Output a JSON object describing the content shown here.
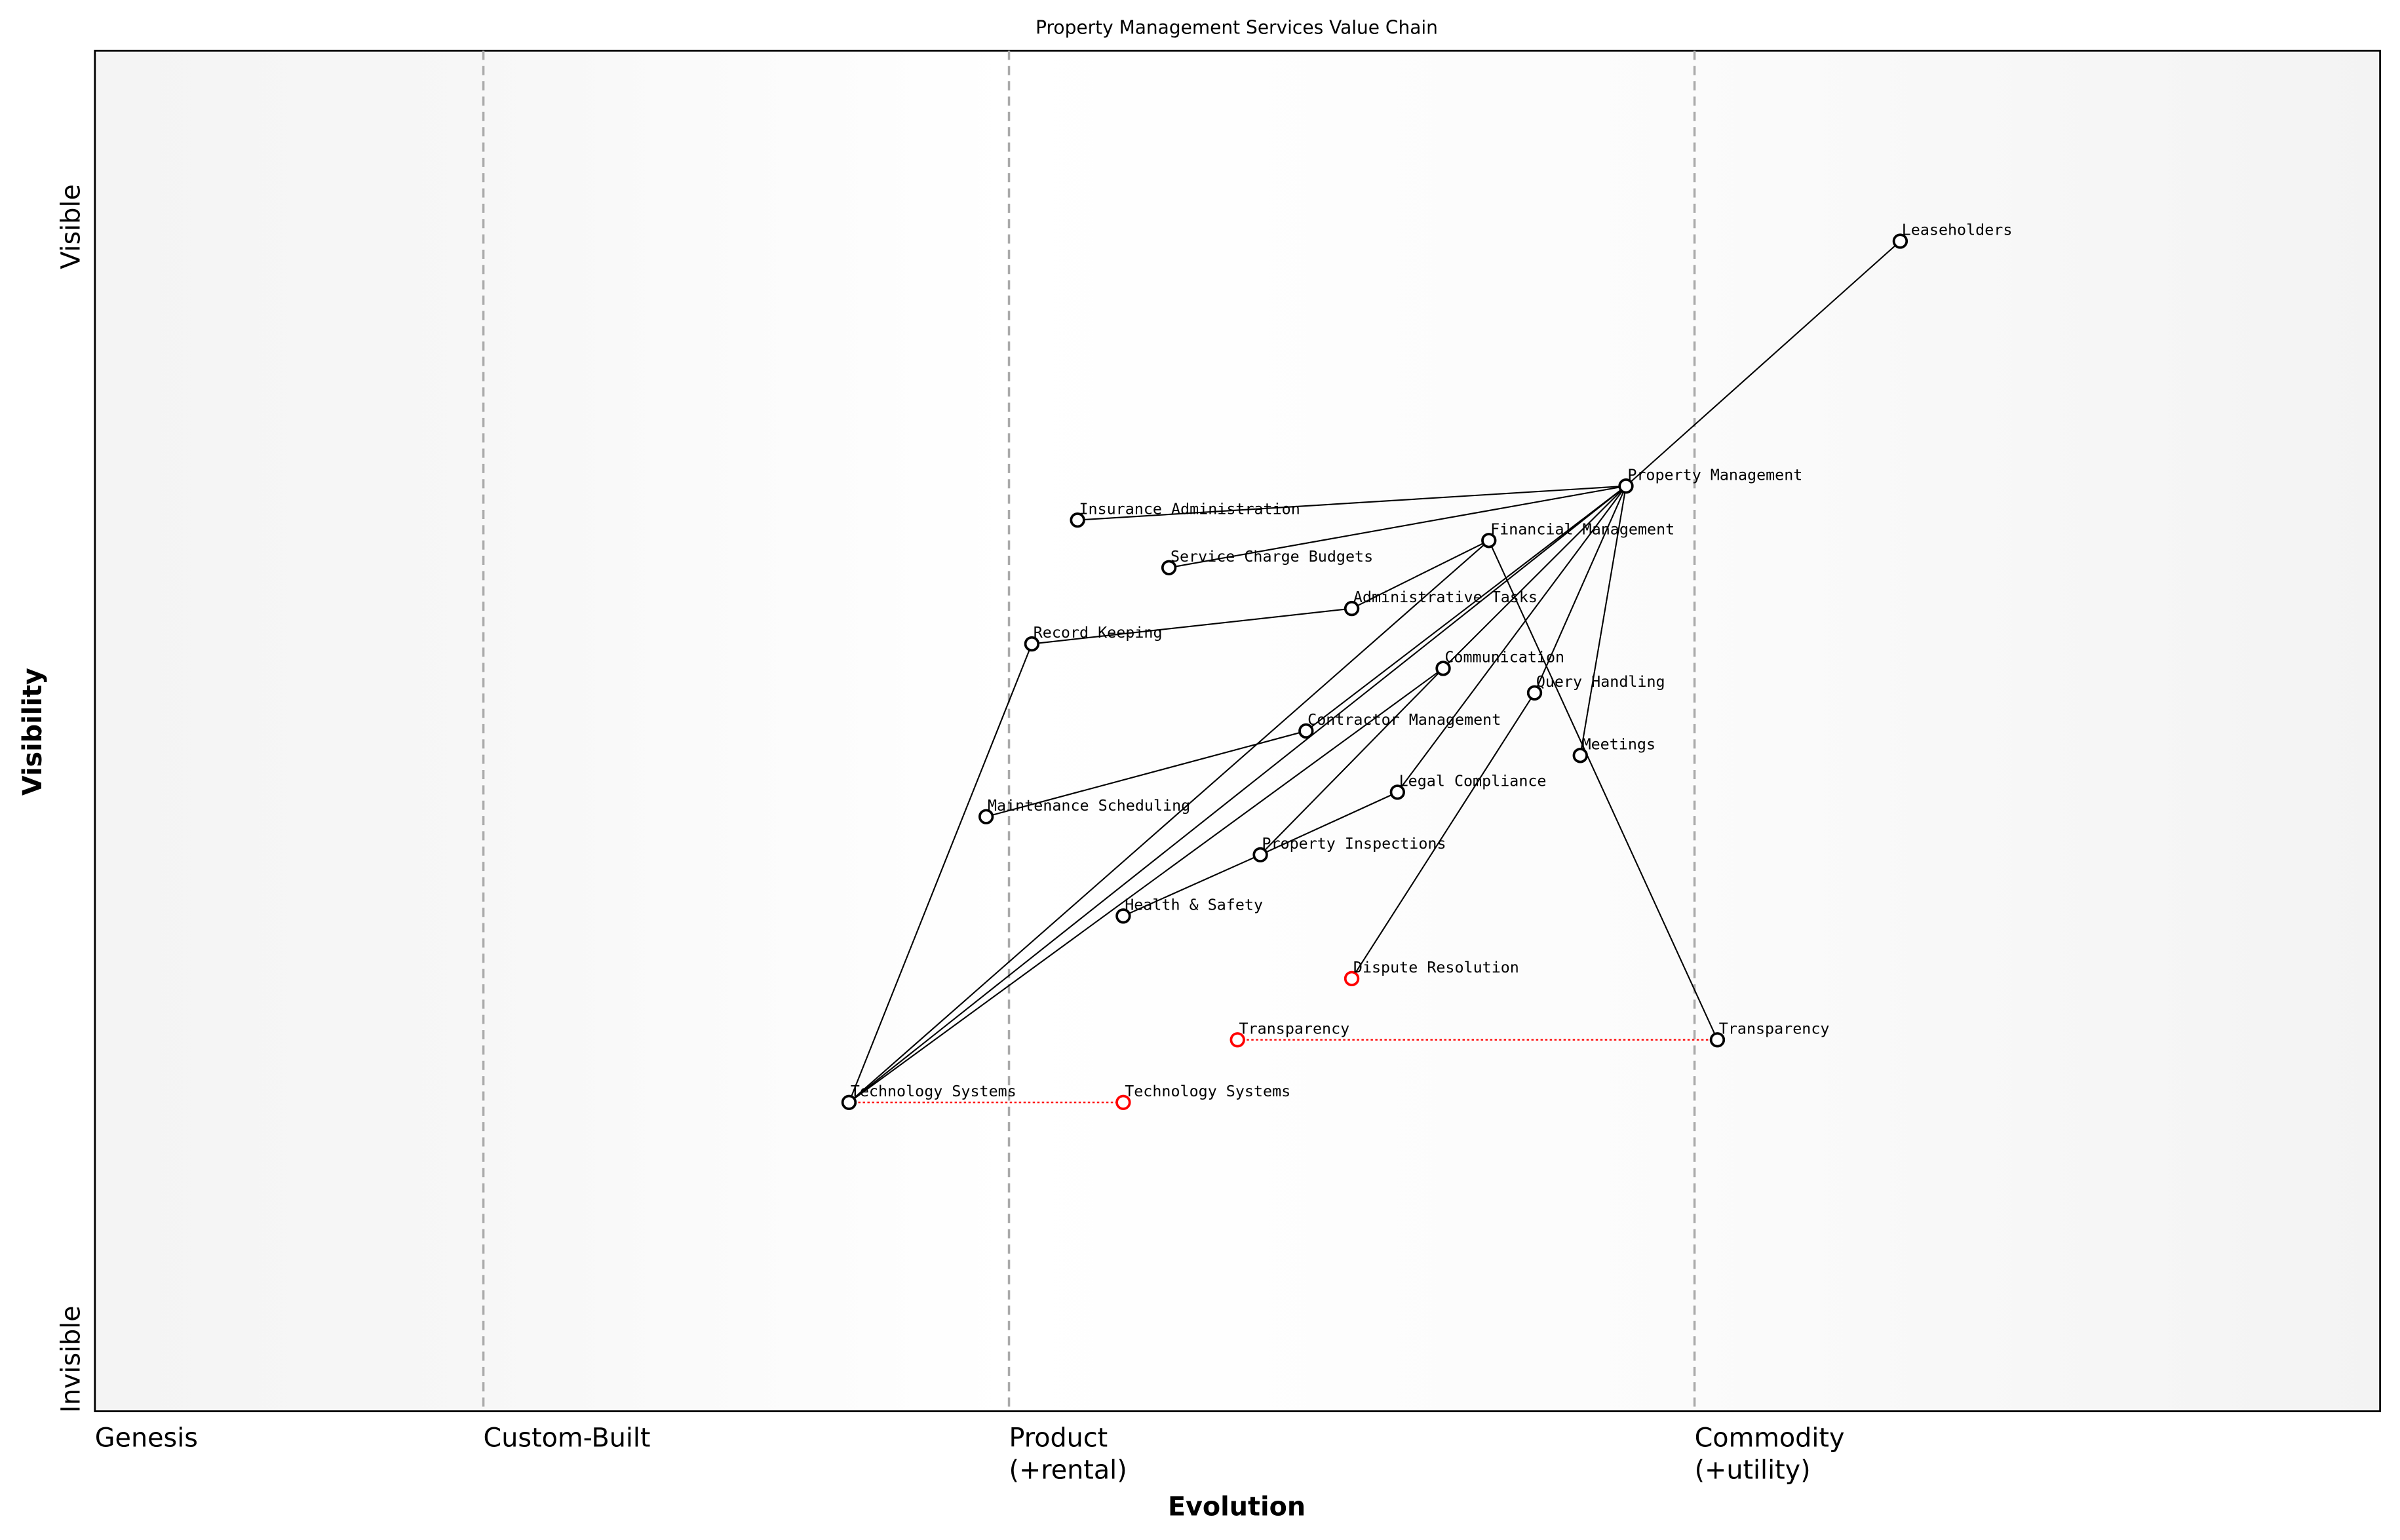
{
  "title": "Property Management Services Value Chain",
  "x_axis": {
    "label": "Evolution",
    "stages": [
      {
        "label": "Genesis",
        "line2": "",
        "at": 0.0
      },
      {
        "label": "Custom-Built",
        "line2": "",
        "at": 0.17
      },
      {
        "label": "Product",
        "line2": "(+rental)",
        "at": 0.4
      },
      {
        "label": "Commodity",
        "line2": "(+utility)",
        "at": 0.7
      }
    ]
  },
  "y_axis": {
    "label": "Visibility",
    "top": "Visible",
    "bottom": "Invisible"
  },
  "colors": {
    "node": "#000000",
    "evolved": "#ff0000",
    "link": "#000000",
    "evolution_link": "#ff0000",
    "stage_line": "#aaaaaa"
  },
  "components": [
    {
      "id": "leaseholders",
      "name": "Leaseholders",
      "evolution": 0.79,
      "visibility": 0.86,
      "color": "black"
    },
    {
      "id": "pm",
      "name": "Property Management",
      "evolution": 0.67,
      "visibility": 0.68,
      "color": "black"
    },
    {
      "id": "ins",
      "name": "Insurance Administration",
      "evolution": 0.43,
      "visibility": 0.655,
      "color": "black"
    },
    {
      "id": "scb",
      "name": "Service Charge Budgets",
      "evolution": 0.47,
      "visibility": 0.62,
      "color": "black"
    },
    {
      "id": "fm",
      "name": "Financial Management",
      "evolution": 0.61,
      "visibility": 0.64,
      "color": "black"
    },
    {
      "id": "adm",
      "name": "Administrative Tasks",
      "evolution": 0.55,
      "visibility": 0.59,
      "color": "black"
    },
    {
      "id": "rk",
      "name": "Record Keeping",
      "evolution": 0.41,
      "visibility": 0.564,
      "color": "black"
    },
    {
      "id": "comm",
      "name": "Communication",
      "evolution": 0.59,
      "visibility": 0.546,
      "color": "black"
    },
    {
      "id": "qh",
      "name": "Query Handling",
      "evolution": 0.63,
      "visibility": 0.528,
      "color": "black"
    },
    {
      "id": "cm",
      "name": "Contractor Management",
      "evolution": 0.53,
      "visibility": 0.5,
      "color": "black"
    },
    {
      "id": "meet",
      "name": "Meetings",
      "evolution": 0.65,
      "visibility": 0.482,
      "color": "black"
    },
    {
      "id": "lc",
      "name": "Legal Compliance",
      "evolution": 0.57,
      "visibility": 0.455,
      "color": "black"
    },
    {
      "id": "ms",
      "name": "Maintenance Scheduling",
      "evolution": 0.39,
      "visibility": 0.437,
      "color": "black"
    },
    {
      "id": "pi",
      "name": "Property Inspections",
      "evolution": 0.51,
      "visibility": 0.409,
      "color": "black"
    },
    {
      "id": "hs",
      "name": "Health & Safety",
      "evolution": 0.45,
      "visibility": 0.364,
      "color": "black"
    },
    {
      "id": "dr",
      "name": "Dispute Resolution",
      "evolution": 0.55,
      "visibility": 0.318,
      "color": "red"
    },
    {
      "id": "tr_new",
      "name": "Transparency",
      "evolution": 0.5,
      "visibility": 0.273,
      "color": "red"
    },
    {
      "id": "tr",
      "name": "Transparency",
      "evolution": 0.71,
      "visibility": 0.273,
      "color": "black"
    },
    {
      "id": "ts",
      "name": "Technology Systems",
      "evolution": 0.33,
      "visibility": 0.227,
      "color": "black"
    },
    {
      "id": "ts_new",
      "name": "Technology Systems",
      "evolution": 0.45,
      "visibility": 0.227,
      "color": "red"
    }
  ],
  "links": [
    [
      "leaseholders",
      "pm"
    ],
    [
      "pm",
      "ins"
    ],
    [
      "pm",
      "scb"
    ],
    [
      "pm",
      "cm"
    ],
    [
      "pm",
      "comm"
    ],
    [
      "pm",
      "lc"
    ],
    [
      "pm",
      "qh"
    ],
    [
      "pm",
      "meet"
    ],
    [
      "pm",
      "ts"
    ],
    [
      "fm",
      "adm"
    ],
    [
      "fm",
      "tr"
    ],
    [
      "fm",
      "ts"
    ],
    [
      "adm",
      "rk"
    ],
    [
      "rk",
      "ts"
    ],
    [
      "cm",
      "ms"
    ],
    [
      "comm",
      "pi"
    ],
    [
      "comm",
      "ts"
    ],
    [
      "lc",
      "pi"
    ],
    [
      "pi",
      "hs"
    ],
    [
      "qh",
      "dr"
    ]
  ],
  "evolution_links": [
    [
      "ts",
      "ts_new"
    ],
    [
      "tr_new",
      "tr"
    ]
  ]
}
